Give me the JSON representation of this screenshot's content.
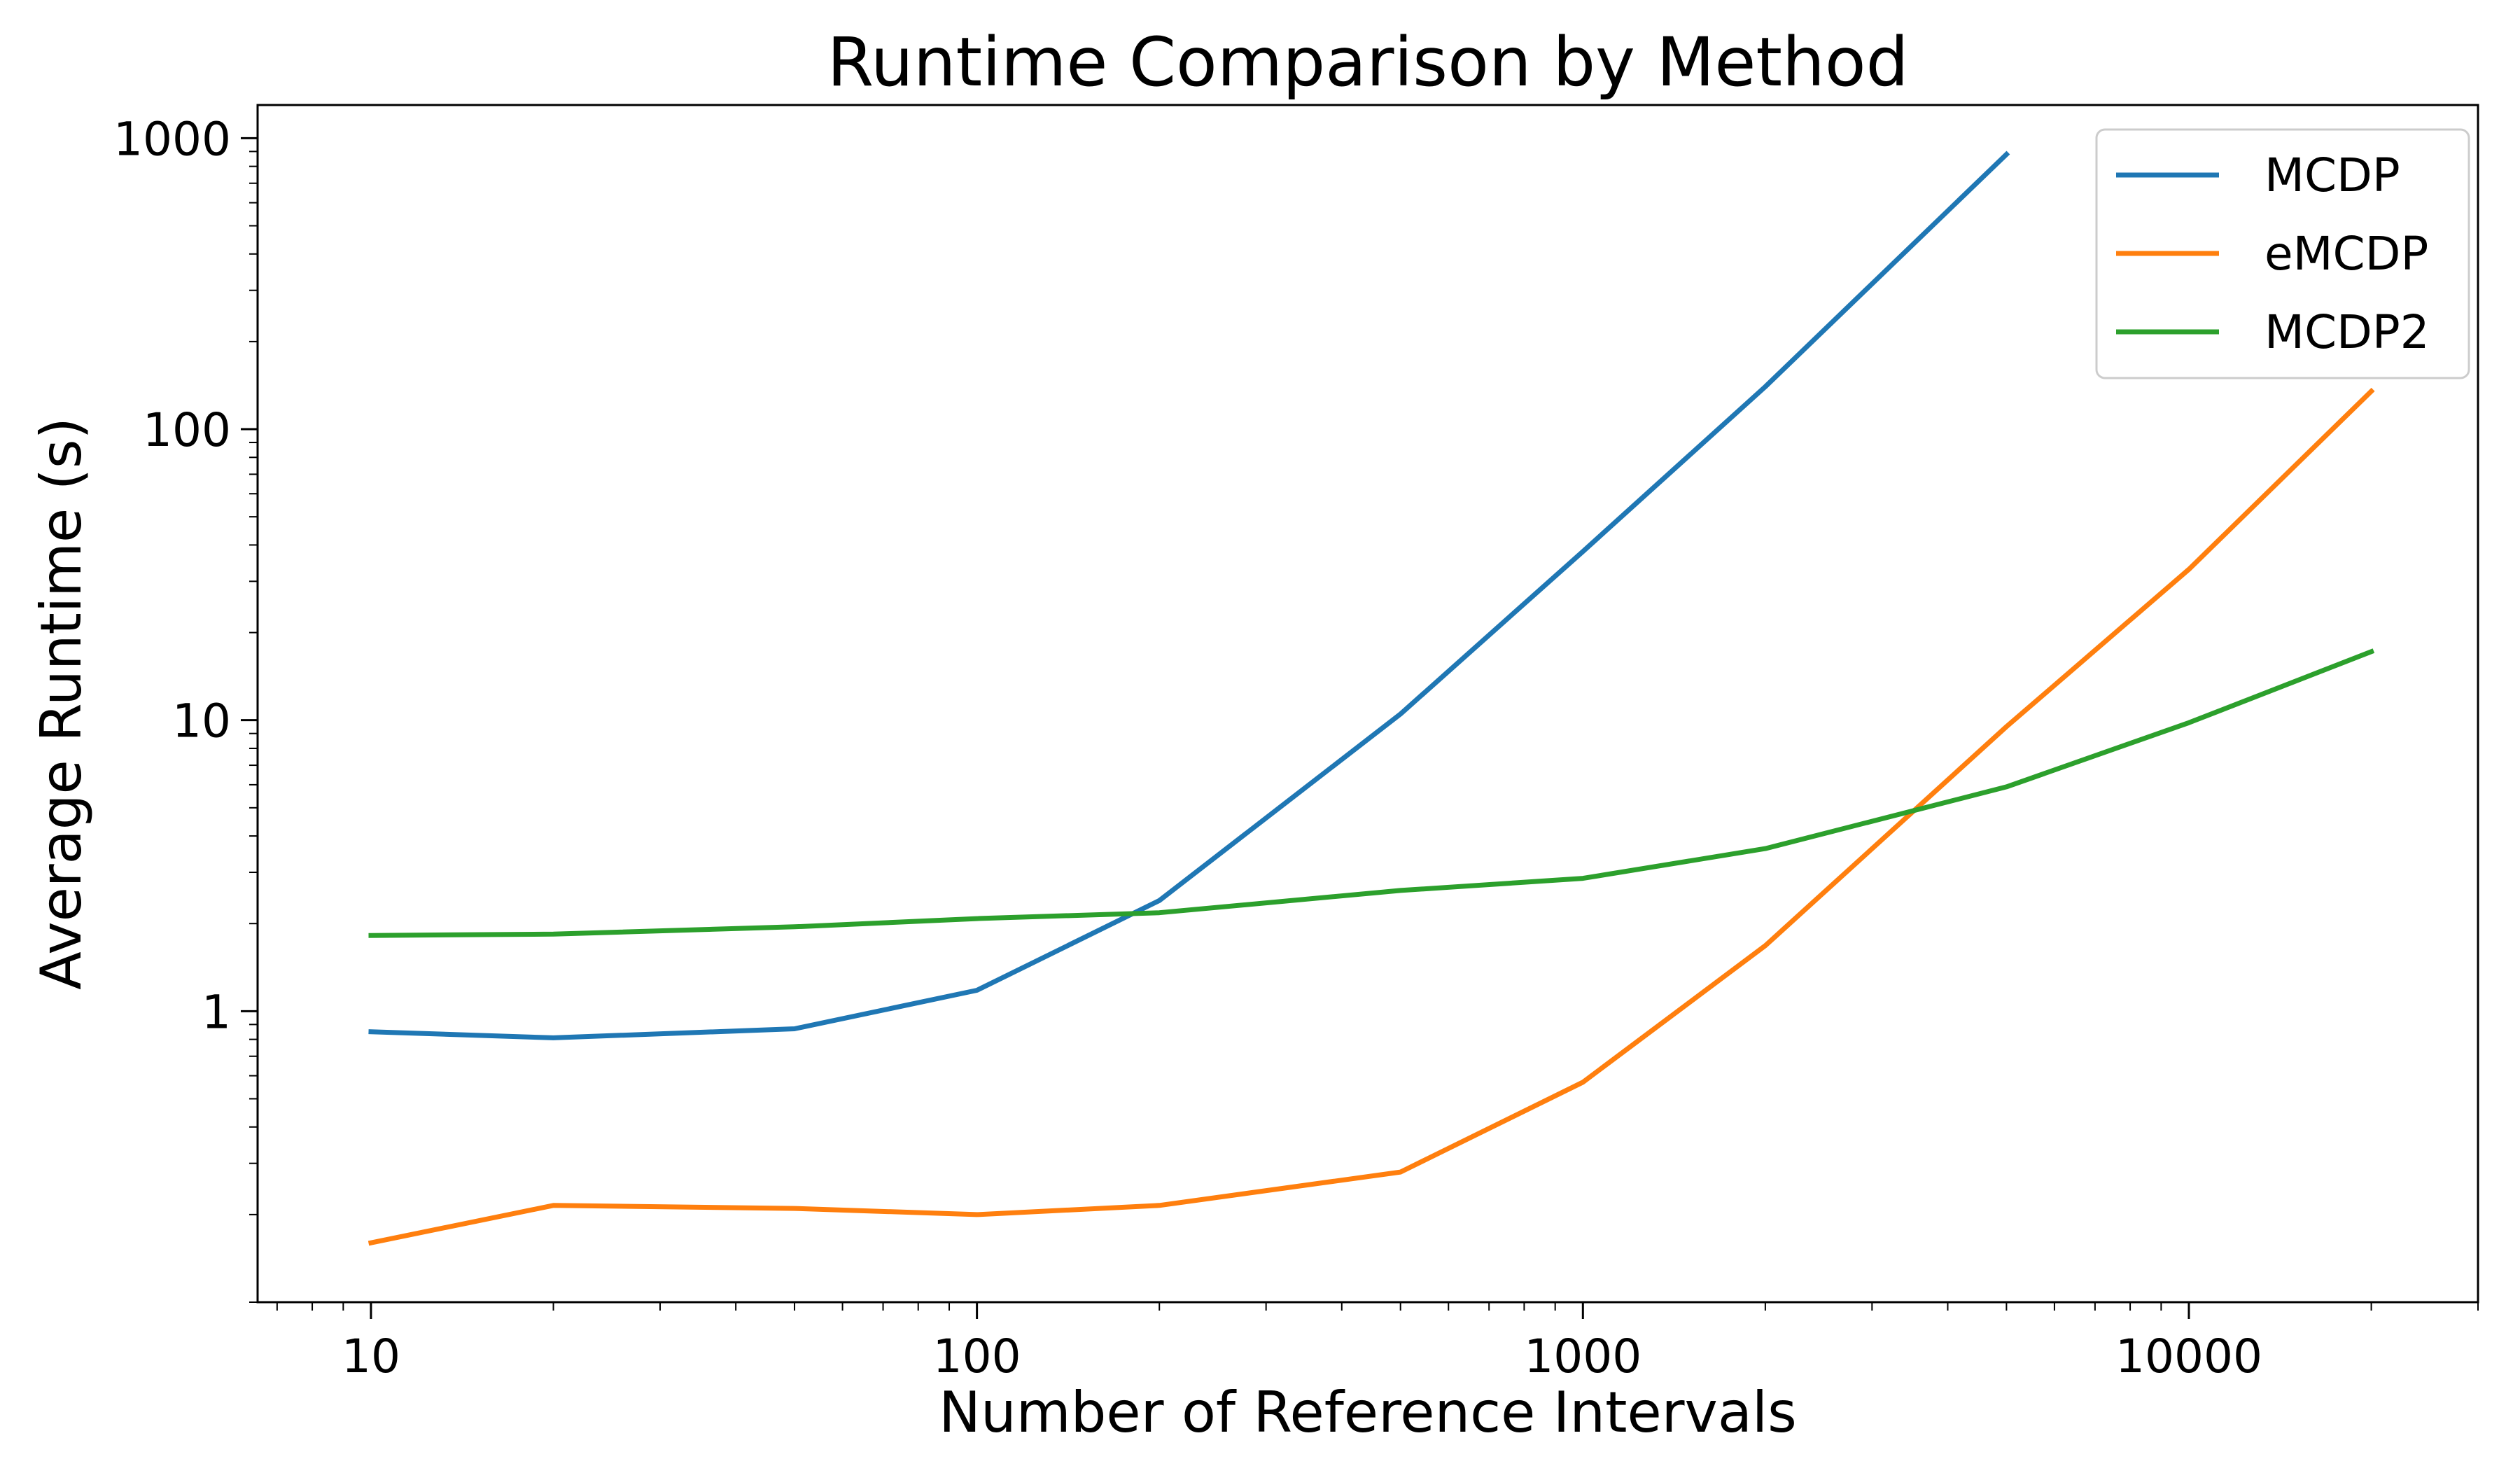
{
  "chart_data": {
    "type": "line",
    "title": "Runtime Comparison by Method",
    "xlabel": "Number of Reference Intervals",
    "ylabel": "Average Runtime (s)",
    "x_scale": "log",
    "y_scale": "log",
    "xlim": [
      6.5,
      30000
    ],
    "ylim": [
      0.1,
      1300
    ],
    "x_ticks": [
      {
        "value": 10,
        "label": "10"
      },
      {
        "value": 100,
        "label": "100"
      },
      {
        "value": 1000,
        "label": "1000"
      },
      {
        "value": 10000,
        "label": "10000"
      }
    ],
    "y_ticks": [
      {
        "value": 1,
        "label": "1"
      },
      {
        "value": 10,
        "label": "10"
      },
      {
        "value": 100,
        "label": "100"
      },
      {
        "value": 1000,
        "label": "1000"
      }
    ],
    "grid": false,
    "legend_position": "top-right",
    "series": [
      {
        "name": "MCDP",
        "color": "#1f77b4",
        "x": [
          10,
          20,
          50,
          100,
          200,
          500,
          1000,
          2000,
          5000
        ],
        "y": [
          0.85,
          0.81,
          0.87,
          1.18,
          2.4,
          10.5,
          38,
          140,
          880
        ]
      },
      {
        "name": "eMCDP",
        "color": "#ff7f0e",
        "x": [
          10,
          20,
          50,
          100,
          200,
          500,
          1000,
          2000,
          5000,
          10000,
          20000
        ],
        "y": [
          0.16,
          0.215,
          0.21,
          0.2,
          0.215,
          0.28,
          0.57,
          1.68,
          9.5,
          33,
          135
        ]
      },
      {
        "name": "MCDP2",
        "color": "#2ca02c",
        "x": [
          10,
          20,
          50,
          100,
          200,
          500,
          1000,
          2000,
          5000,
          10000,
          20000
        ],
        "y": [
          1.82,
          1.84,
          1.95,
          2.08,
          2.18,
          2.6,
          2.86,
          3.62,
          5.9,
          9.8,
          17.2
        ]
      }
    ]
  }
}
